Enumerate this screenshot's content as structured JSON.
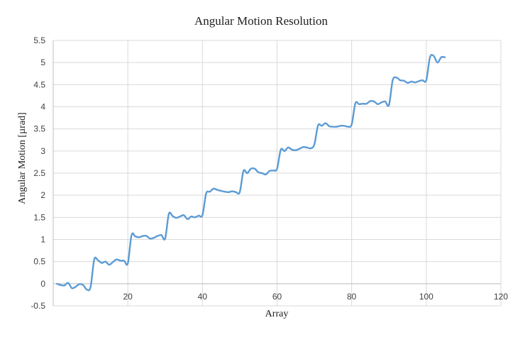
{
  "chart_data": {
    "type": "line",
    "title": "Angular Motion Resolution",
    "xlabel": "Array",
    "ylabel": "Angular Motion [µrad]",
    "xlim": [
      0,
      120
    ],
    "ylim": [
      -0.5,
      5.5
    ],
    "xticks": [
      0,
      20,
      40,
      60,
      80,
      100,
      120
    ],
    "yticks": [
      -0.5,
      0,
      0.5,
      1,
      1.5,
      2,
      2.5,
      3,
      3.5,
      4,
      4.5,
      5,
      5.5
    ],
    "grid": true,
    "legend": "none",
    "series": [
      {
        "color": "#5b9bd5",
        "x": [
          1,
          2,
          3,
          4,
          5,
          6,
          7,
          8,
          9,
          10,
          11,
          12,
          13,
          14,
          15,
          16,
          17,
          18,
          19,
          20,
          21,
          22,
          23,
          24,
          25,
          26,
          27,
          28,
          29,
          30,
          31,
          32,
          33,
          34,
          35,
          36,
          37,
          38,
          39,
          40,
          41,
          42,
          43,
          44,
          45,
          46,
          47,
          48,
          49,
          50,
          51,
          52,
          53,
          54,
          55,
          56,
          57,
          58,
          59,
          60,
          61,
          62,
          63,
          64,
          65,
          66,
          67,
          68,
          69,
          70,
          71,
          72,
          73,
          74,
          75,
          76,
          77,
          78,
          79,
          80,
          81,
          82,
          83,
          84,
          85,
          86,
          87,
          88,
          89,
          90,
          91,
          92,
          93,
          94,
          95,
          96,
          97,
          98,
          99,
          100,
          101,
          102,
          103,
          104,
          105
        ],
        "y": [
          0,
          -0.03,
          -0.04,
          0.02,
          -0.1,
          -0.07,
          -0.01,
          -0.03,
          -0.13,
          -0.08,
          0.55,
          0.53,
          0.47,
          0.5,
          0.43,
          0.49,
          0.55,
          0.52,
          0.52,
          0.46,
          1.1,
          1.07,
          1.05,
          1.08,
          1.08,
          1.02,
          1.04,
          1.08,
          1.1,
          1.02,
          1.58,
          1.53,
          1.49,
          1.52,
          1.55,
          1.46,
          1.52,
          1.5,
          1.54,
          1.55,
          2.04,
          2.08,
          2.15,
          2.12,
          2.1,
          2.08,
          2.07,
          2.09,
          2.07,
          2.07,
          2.55,
          2.5,
          2.6,
          2.6,
          2.52,
          2.5,
          2.47,
          2.55,
          2.56,
          2.6,
          3.03,
          3.0,
          3.08,
          3.03,
          3.02,
          3.05,
          3.09,
          3.08,
          3.06,
          3.15,
          3.58,
          3.57,
          3.63,
          3.56,
          3.55,
          3.55,
          3.57,
          3.57,
          3.55,
          3.6,
          4.08,
          4.06,
          4.07,
          4.07,
          4.13,
          4.12,
          4.06,
          4.1,
          4.12,
          4.04,
          4.6,
          4.66,
          4.6,
          4.59,
          4.54,
          4.57,
          4.55,
          4.58,
          4.6,
          4.6,
          5.12,
          5.15,
          5.0,
          5.12,
          5.12
        ]
      }
    ]
  }
}
